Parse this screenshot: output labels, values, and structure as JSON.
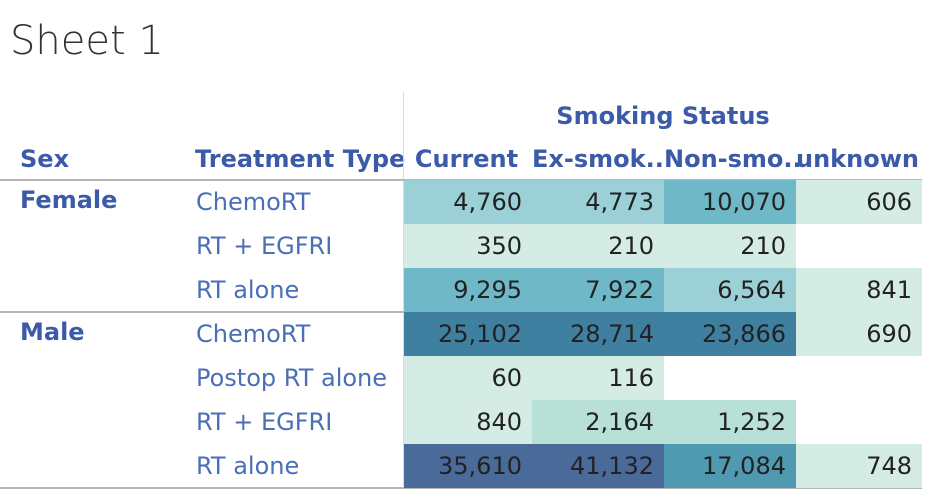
{
  "title": "Sheet 1",
  "colors": {
    "header_text": "#3b5aa8",
    "row_label": "#4a6fb5",
    "title": "#333333",
    "value_text": "#222222",
    "scale": [
      "#d4ece4",
      "#b8e0d6",
      "#9ad0d6",
      "#6eb8c8",
      "#4f9ab0",
      "#3f7fa0",
      "#4a6a9a"
    ]
  },
  "chart_data": {
    "type": "table",
    "column_group_label": "Smoking Status",
    "row_headers": [
      "Sex",
      "Treatment Type"
    ],
    "columns": [
      "Current",
      "Ex-smok..",
      "Non-smo..",
      "unknown"
    ],
    "rows": [
      {
        "sex": "Female",
        "treatment": "ChemoRT",
        "values": [
          "4,760",
          "4,773",
          "10,070",
          "606"
        ]
      },
      {
        "sex": "",
        "treatment": "RT + EGFRI",
        "values": [
          "350",
          "210",
          "210",
          ""
        ]
      },
      {
        "sex": "",
        "treatment": "RT alone",
        "values": [
          "9,295",
          "7,922",
          "6,564",
          "841"
        ]
      },
      {
        "sex": "Male",
        "treatment": "ChemoRT",
        "values": [
          "25,102",
          "28,714",
          "23,866",
          "690"
        ]
      },
      {
        "sex": "",
        "treatment": "Postop RT alone",
        "values": [
          "60",
          "116",
          "",
          ""
        ]
      },
      {
        "sex": "",
        "treatment": "RT + EGFRI",
        "values": [
          "840",
          "2,164",
          "1,252",
          ""
        ]
      },
      {
        "sex": "",
        "treatment": "RT alone",
        "values": [
          "35,610",
          "41,132",
          "17,084",
          "748"
        ]
      }
    ]
  }
}
